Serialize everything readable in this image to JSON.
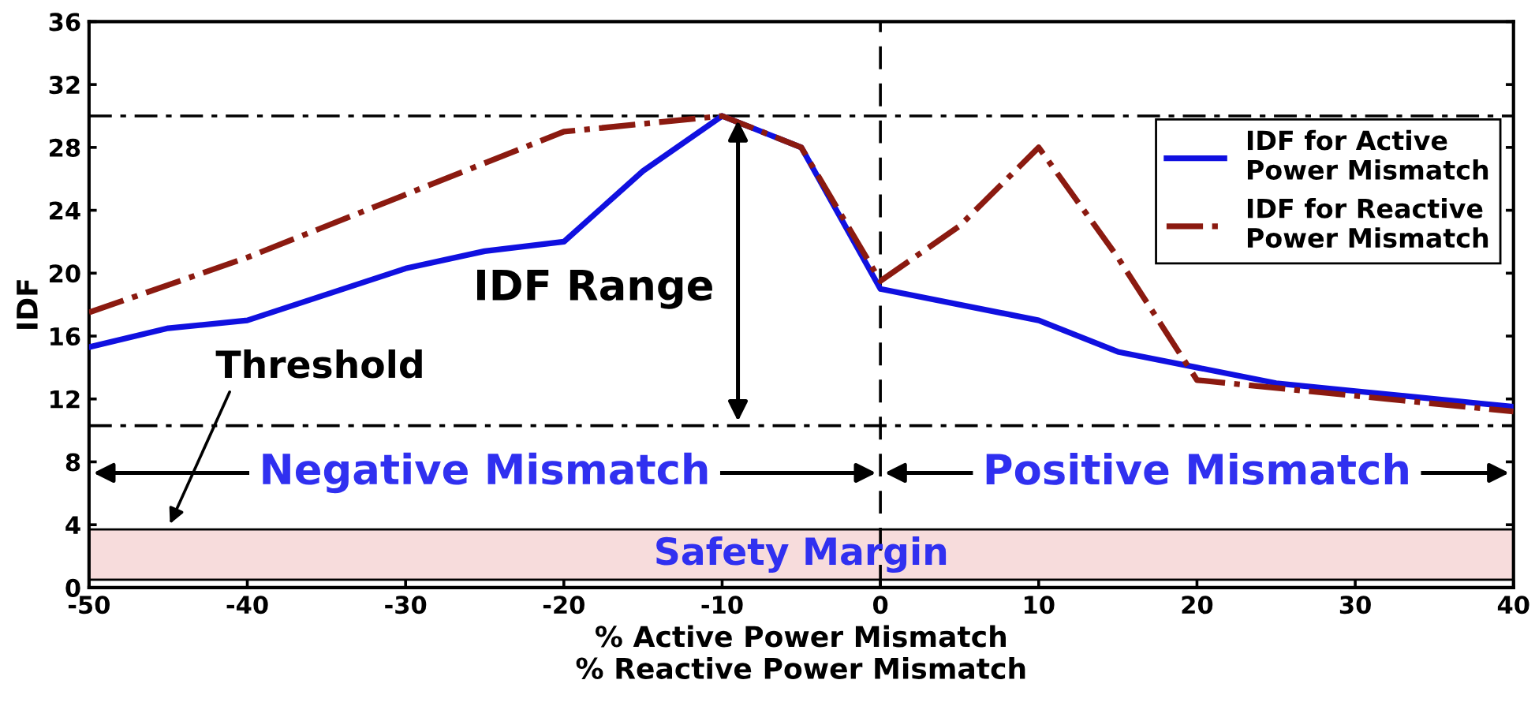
{
  "chart_data": {
    "type": "line",
    "xlabel": "% Active Power Mismatch\n% Reactive Power Mismatch",
    "ylabel": "IDF",
    "xlim": [
      -50,
      40
    ],
    "xticks": [
      -50,
      -40,
      -30,
      -20,
      -10,
      0,
      10,
      20,
      30,
      40
    ],
    "ylim": [
      0,
      36
    ],
    "yticks": [
      0,
      4,
      8,
      12,
      16,
      20,
      24,
      28,
      32,
      36
    ],
    "grid": false,
    "legend": "right",
    "series": [
      {
        "name": "IDF for Active\nPower Mismatch",
        "color": "#1010e0",
        "line_style": "solid",
        "x": [
          -50,
          -45,
          -40,
          -30,
          -25,
          -20,
          -15,
          -10,
          -5,
          0,
          10,
          15,
          20,
          25,
          30,
          40
        ],
        "values": [
          15.3,
          16.5,
          17,
          20.3,
          21.4,
          22,
          26.5,
          30,
          28,
          19,
          17,
          15,
          14,
          13,
          12.5,
          11.5
        ]
      },
      {
        "name": "IDF for Reactive\nPower Mismatch",
        "color": "#8b1a10",
        "line_style": "dashed",
        "x": [
          -50,
          -40,
          -30,
          -20,
          -10,
          -5,
          0,
          5,
          10,
          15,
          20,
          30,
          40
        ],
        "values": [
          17.5,
          21,
          25,
          29,
          30,
          28,
          19.5,
          23,
          28,
          21,
          13.2,
          12.2,
          11.2
        ]
      }
    ],
    "ref_lines": [
      {
        "axis": "y",
        "value": 30,
        "line_style": "dashed"
      },
      {
        "axis": "y",
        "value": 10.3,
        "line_style": "dashed"
      },
      {
        "axis": "x",
        "value": 0,
        "line_style": "dashed"
      }
    ],
    "bands": [
      {
        "axis": "y",
        "from": 0.5,
        "to": 3.7,
        "label": "Safety Margin",
        "color": "#f7dcdc"
      }
    ],
    "annotations": [
      "IDF Range",
      "Threshold",
      "Negative Mismatch",
      "Positive Mismatch"
    ]
  }
}
